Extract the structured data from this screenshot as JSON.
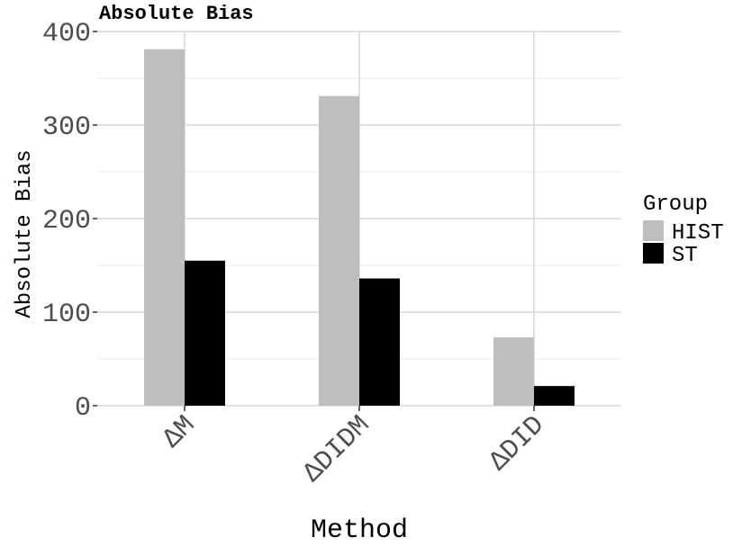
{
  "chart_data": {
    "type": "bar",
    "title": "Absolute Bias",
    "xlabel": "Method",
    "ylabel": "Absolute Bias",
    "categories": [
      "ΔM",
      "ΔDIDM",
      "ΔDID"
    ],
    "series": [
      {
        "name": "HIST",
        "values": [
          381,
          331,
          73
        ],
        "color": "#bebebe"
      },
      {
        "name": "ST",
        "values": [
          155,
          136,
          21
        ],
        "color": "#000000"
      }
    ],
    "ylim": [
      0,
      400
    ],
    "yticks": [
      0,
      100,
      200,
      300,
      400
    ],
    "grid": true,
    "legend": {
      "title": "Group",
      "position": "right"
    }
  }
}
